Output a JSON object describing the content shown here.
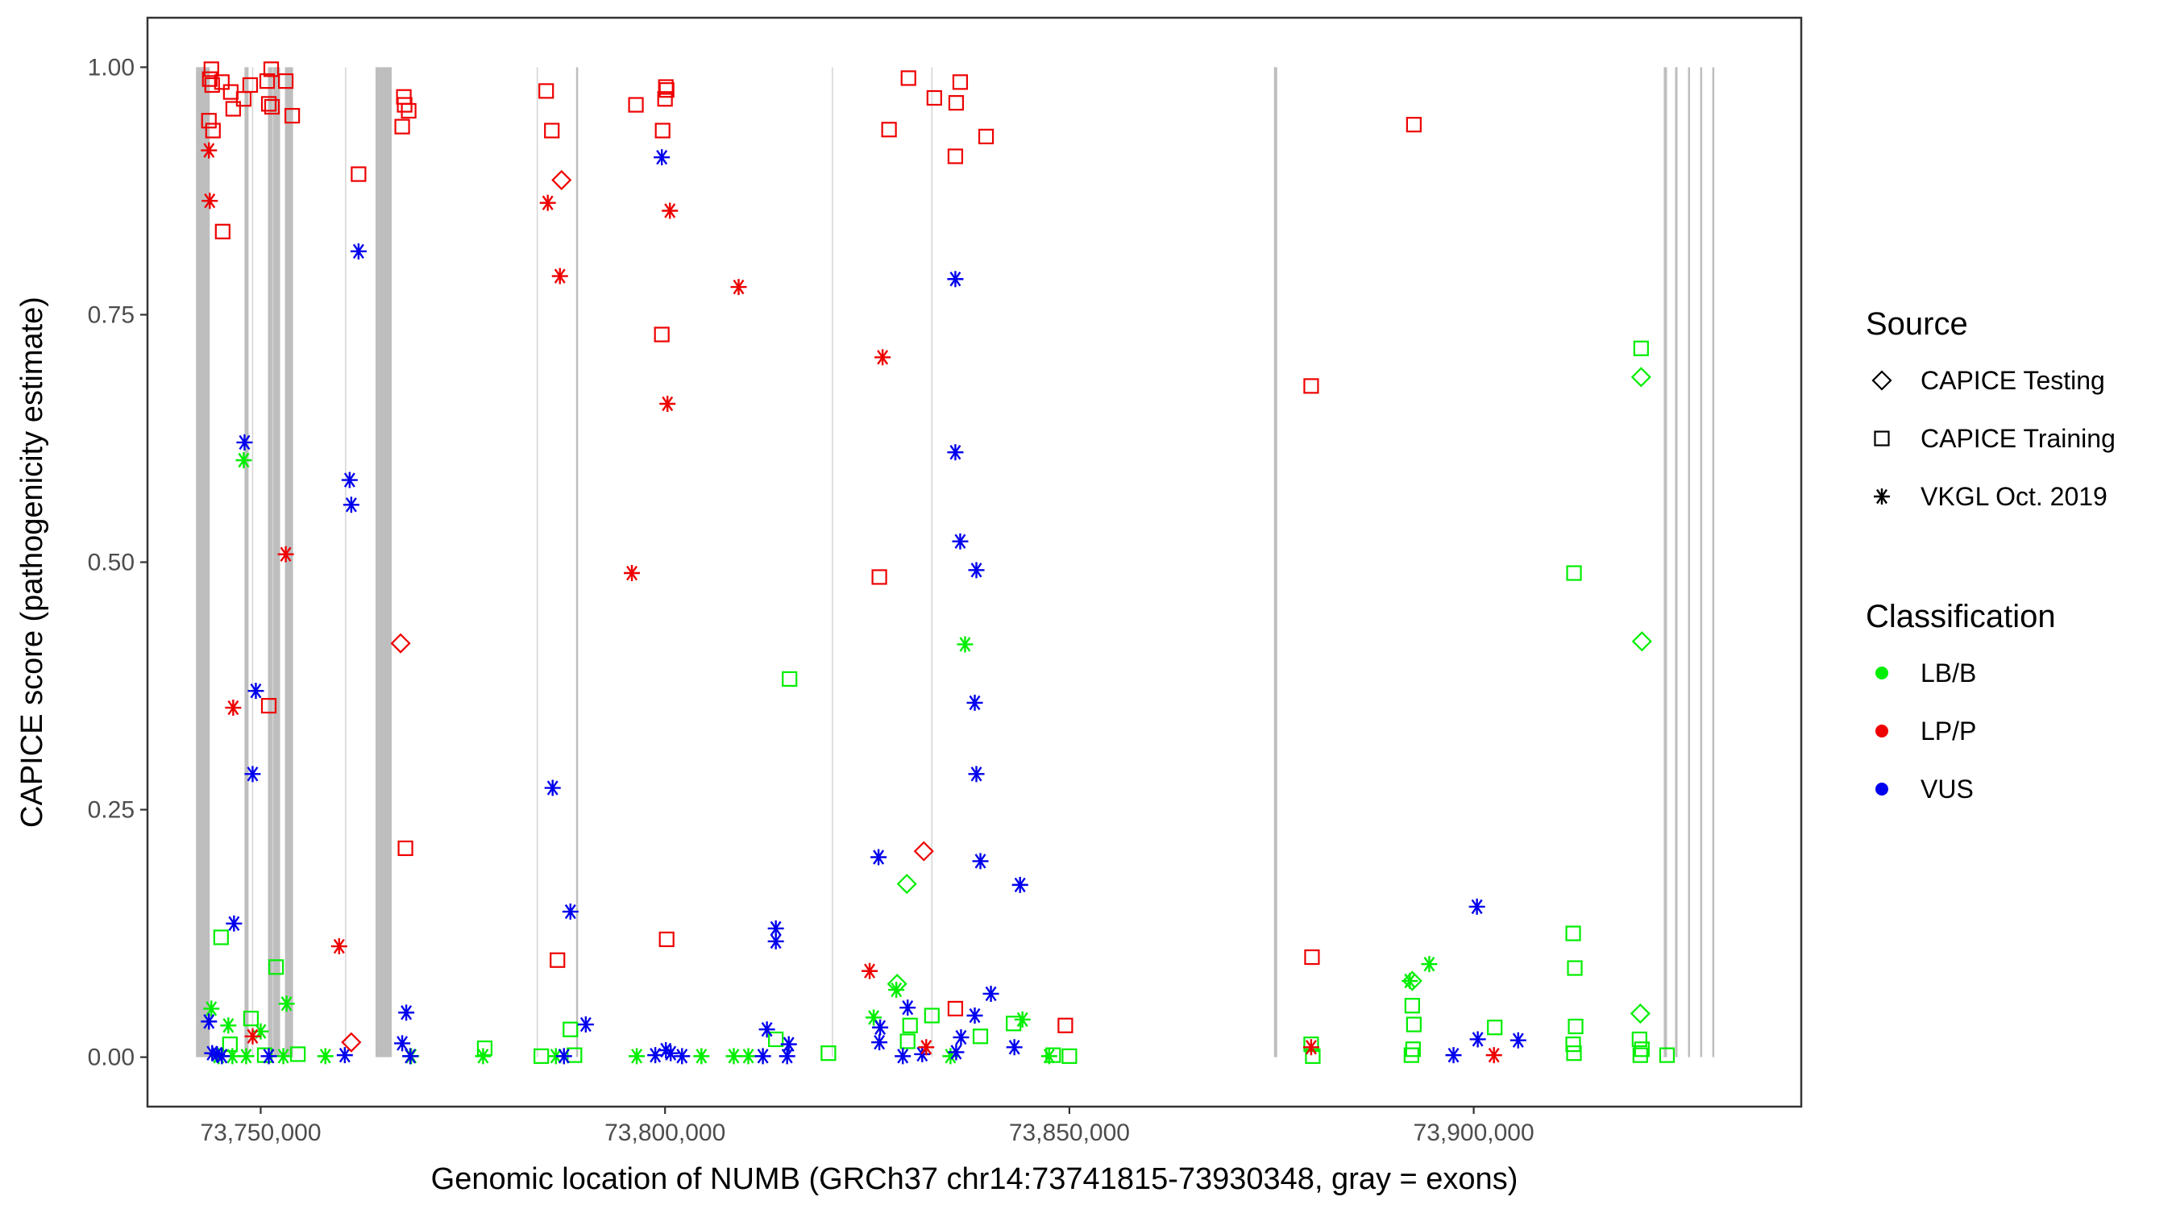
{
  "chart_data": {
    "type": "scatter",
    "xlabel": "Genomic location of NUMB (GRCh37 chr14:73741815-73930348, gray = exons)",
    "ylabel": "CAPICE score (pathogenicity estimate)",
    "xlim": [
      73736000,
      73940500
    ],
    "ylim": [
      -0.05,
      1.05
    ],
    "x_ticks": [
      73750000,
      73800000,
      73850000,
      73900000
    ],
    "x_tick_labels": [
      "73,750,000",
      "73,800,000",
      "73,850,000",
      "73,900,000"
    ],
    "y_ticks": [
      0,
      0.25,
      0.5,
      0.75,
      1.0
    ],
    "y_tick_labels": [
      "0.00",
      "0.25",
      "0.50",
      "0.75",
      "1.00"
    ],
    "grid": false,
    "legend_position": "right",
    "colors": {
      "LB/B": "#00ee00",
      "LP/P": "#ee0000",
      "VUS": "#0000ee",
      "exon": "#bebebe",
      "frame": "#333333"
    },
    "exons": [
      [
        73742000,
        73743700
      ],
      [
        73748000,
        73748500
      ],
      [
        73750900,
        73752400
      ],
      [
        73753000,
        73754000
      ],
      [
        73764200,
        73766200
      ],
      [
        73789000,
        73789200
      ],
      [
        73875300,
        73875700
      ],
      [
        73923500,
        73923900
      ],
      [
        73924900,
        73925200
      ],
      [
        73926500,
        73926700
      ],
      [
        73928000,
        73928200
      ],
      [
        73929500,
        73929700
      ]
    ],
    "exon_lines": [
      73749000,
      73751500,
      73760500,
      73784200,
      73820700,
      73833000
    ],
    "legend": {
      "source_title": "Source",
      "source_items": [
        {
          "label": "CAPICE Testing",
          "shape": "diamond"
        },
        {
          "label": "CAPICE Training",
          "shape": "square"
        },
        {
          "label": "VKGL Oct. 2019",
          "shape": "star"
        }
      ],
      "class_title": "Classification",
      "class_items": [
        {
          "label": "LB/B",
          "color": "#00ee00"
        },
        {
          "label": "LP/P",
          "color": "#ee0000"
        },
        {
          "label": "VUS",
          "color": "#0000ee"
        }
      ]
    },
    "series": [
      {
        "name": "LP/P",
        "color": "#ee0000",
        "points": [
          [
            73743900,
            0.998,
            "square"
          ],
          [
            73743700,
            0.988,
            "square"
          ],
          [
            73744000,
            0.982,
            "square"
          ],
          [
            73745200,
            0.985,
            "square"
          ],
          [
            73743600,
            0.946,
            "square"
          ],
          [
            73744100,
            0.936,
            "square"
          ],
          [
            73746300,
            0.975,
            "square"
          ],
          [
            73746600,
            0.958,
            "square"
          ],
          [
            73747900,
            0.968,
            "square"
          ],
          [
            73748700,
            0.982,
            "square"
          ],
          [
            73751300,
            0.998,
            "square"
          ],
          [
            73750800,
            0.986,
            "square"
          ],
          [
            73751000,
            0.963,
            "square"
          ],
          [
            73751400,
            0.96,
            "square"
          ],
          [
            73753100,
            0.986,
            "square"
          ],
          [
            73753900,
            0.951,
            "square"
          ],
          [
            73745300,
            0.834,
            "square"
          ],
          [
            73762100,
            0.892,
            "square"
          ],
          [
            73767700,
            0.97,
            "square"
          ],
          [
            73767800,
            0.962,
            "square"
          ],
          [
            73768300,
            0.956,
            "square"
          ],
          [
            73767500,
            0.94,
            "square"
          ],
          [
            73785300,
            0.976,
            "square"
          ],
          [
            73786000,
            0.936,
            "square"
          ],
          [
            73796400,
            0.962,
            "square"
          ],
          [
            73800100,
            0.98,
            "square"
          ],
          [
            73800200,
            0.977,
            "square"
          ],
          [
            73800000,
            0.968,
            "square"
          ],
          [
            73799700,
            0.936,
            "square"
          ],
          [
            73799600,
            0.73,
            "square"
          ],
          [
            73830100,
            0.989,
            "square"
          ],
          [
            73836500,
            0.985,
            "square"
          ],
          [
            73833300,
            0.969,
            "square"
          ],
          [
            73836000,
            0.964,
            "square"
          ],
          [
            73827700,
            0.937,
            "square"
          ],
          [
            73839700,
            0.93,
            "square"
          ],
          [
            73835900,
            0.91,
            "square"
          ],
          [
            73751000,
            0.355,
            "square"
          ],
          [
            73767900,
            0.211,
            "square"
          ],
          [
            73786700,
            0.098,
            "square"
          ],
          [
            73800200,
            0.119,
            "square"
          ],
          [
            73826500,
            0.485,
            "square"
          ],
          [
            73835900,
            0.049,
            "square"
          ],
          [
            73849500,
            0.032,
            "square"
          ],
          [
            73892600,
            0.942,
            "square"
          ],
          [
            73879900,
            0.678,
            "square"
          ],
          [
            73880000,
            0.101,
            "square"
          ],
          [
            73787200,
            0.886,
            "diamond"
          ],
          [
            73767300,
            0.418,
            "diamond"
          ],
          [
            73761200,
            0.015,
            "diamond"
          ],
          [
            73832000,
            0.208,
            "diamond"
          ],
          [
            73743600,
            0.916,
            "star"
          ],
          [
            73743700,
            0.865,
            "star"
          ],
          [
            73785500,
            0.863,
            "star"
          ],
          [
            73800600,
            0.855,
            "star"
          ],
          [
            73787000,
            0.789,
            "star"
          ],
          [
            73809100,
            0.778,
            "star"
          ],
          [
            73826900,
            0.707,
            "star"
          ],
          [
            73800300,
            0.66,
            "star"
          ],
          [
            73753100,
            0.508,
            "star"
          ],
          [
            73795900,
            0.489,
            "star"
          ],
          [
            73746600,
            0.353,
            "star"
          ],
          [
            73759700,
            0.112,
            "star"
          ],
          [
            73825300,
            0.087,
            "star"
          ],
          [
            73749000,
            0.021,
            "star"
          ],
          [
            73832300,
            0.01,
            "star"
          ],
          [
            73879900,
            0.01,
            "star"
          ],
          [
            73902500,
            0.002,
            "star"
          ]
        ]
      },
      {
        "name": "VUS",
        "color": "#0000ee",
        "points": [
          [
            73748000,
            0.621,
            "star"
          ],
          [
            73749400,
            0.37,
            "star"
          ],
          [
            73749000,
            0.286,
            "star"
          ],
          [
            73746700,
            0.135,
            "star"
          ],
          [
            73743600,
            0.036,
            "star"
          ],
          [
            73744000,
            0.004,
            "star"
          ],
          [
            73744600,
            0.003,
            "star"
          ],
          [
            73745200,
            0.001,
            "star"
          ],
          [
            73751000,
            0.001,
            "star"
          ],
          [
            73762100,
            0.814,
            "star"
          ],
          [
            73761000,
            0.583,
            "star"
          ],
          [
            73761200,
            0.558,
            "star"
          ],
          [
            73760400,
            0.002,
            "star"
          ],
          [
            73768000,
            0.045,
            "star"
          ],
          [
            73767500,
            0.014,
            "star"
          ],
          [
            73768500,
            0.001,
            "star"
          ],
          [
            73786100,
            0.272,
            "star"
          ],
          [
            73788300,
            0.147,
            "star"
          ],
          [
            73790200,
            0.033,
            "star"
          ],
          [
            73787500,
            0.001,
            "star"
          ],
          [
            73799600,
            0.909,
            "star"
          ],
          [
            73798800,
            0.002,
            "star"
          ],
          [
            73800100,
            0.007,
            "star"
          ],
          [
            73800700,
            0.004,
            "star"
          ],
          [
            73802100,
            0.001,
            "star"
          ],
          [
            73812600,
            0.028,
            "star"
          ],
          [
            73813700,
            0.13,
            "star"
          ],
          [
            73813700,
            0.117,
            "star"
          ],
          [
            73812100,
            0.001,
            "star"
          ],
          [
            73815300,
            0.013,
            "star"
          ],
          [
            73815100,
            0.001,
            "star"
          ],
          [
            73826400,
            0.202,
            "star"
          ],
          [
            73826600,
            0.03,
            "star"
          ],
          [
            73826500,
            0.015,
            "star"
          ],
          [
            73829400,
            0.001,
            "star"
          ],
          [
            73830000,
            0.05,
            "star"
          ],
          [
            73831800,
            0.003,
            "star"
          ],
          [
            73835900,
            0.786,
            "star"
          ],
          [
            73835900,
            0.611,
            "star"
          ],
          [
            73836500,
            0.521,
            "star"
          ],
          [
            73838500,
            0.492,
            "star"
          ],
          [
            73838300,
            0.358,
            "star"
          ],
          [
            73838500,
            0.286,
            "star"
          ],
          [
            73839000,
            0.198,
            "star"
          ],
          [
            73843900,
            0.174,
            "star"
          ],
          [
            73840300,
            0.064,
            "star"
          ],
          [
            73838300,
            0.042,
            "star"
          ],
          [
            73836600,
            0.02,
            "star"
          ],
          [
            73836000,
            0.005,
            "star"
          ],
          [
            73843200,
            0.01,
            "star"
          ],
          [
            73900400,
            0.152,
            "star"
          ],
          [
            73900500,
            0.018,
            "star"
          ],
          [
            73897500,
            0.002,
            "star"
          ],
          [
            73905500,
            0.017,
            "star"
          ]
        ]
      },
      {
        "name": "LB/B",
        "color": "#00ee00",
        "points": [
          [
            73743900,
            0.049,
            "star"
          ],
          [
            73746000,
            0.032,
            "star"
          ],
          [
            73747900,
            0.603,
            "star"
          ],
          [
            73750000,
            0.026,
            "star"
          ],
          [
            73753200,
            0.054,
            "star"
          ],
          [
            73744800,
            0.001,
            "star"
          ],
          [
            73746500,
            0.001,
            "star"
          ],
          [
            73748200,
            0.001,
            "star"
          ],
          [
            73752800,
            0.001,
            "star"
          ],
          [
            73758000,
            0.001,
            "star"
          ],
          [
            73768600,
            0.001,
            "star"
          ],
          [
            73777500,
            0.001,
            "star"
          ],
          [
            73786500,
            0.001,
            "star"
          ],
          [
            73796500,
            0.001,
            "star"
          ],
          [
            73804500,
            0.001,
            "star"
          ],
          [
            73808500,
            0.001,
            "star"
          ],
          [
            73810300,
            0.001,
            "star"
          ],
          [
            73825800,
            0.04,
            "star"
          ],
          [
            73828600,
            0.068,
            "star"
          ],
          [
            73837100,
            0.417,
            "star"
          ],
          [
            73844200,
            0.038,
            "star"
          ],
          [
            73835300,
            0.001,
            "star"
          ],
          [
            73847500,
            0.001,
            "star"
          ],
          [
            73894500,
            0.094,
            "star"
          ],
          [
            73892100,
            0.077,
            "star"
          ],
          [
            73745100,
            0.121,
            "square"
          ],
          [
            73751900,
            0.091,
            "square"
          ],
          [
            73748800,
            0.039,
            "square"
          ],
          [
            73746200,
            0.013,
            "square"
          ],
          [
            73750500,
            0.002,
            "square"
          ],
          [
            73754600,
            0.003,
            "square"
          ],
          [
            73777700,
            0.009,
            "square"
          ],
          [
            73788300,
            0.028,
            "square"
          ],
          [
            73788800,
            0.002,
            "square"
          ],
          [
            73784700,
            0.001,
            "square"
          ],
          [
            73815400,
            0.382,
            "square"
          ],
          [
            73813700,
            0.018,
            "square"
          ],
          [
            73820200,
            0.004,
            "square"
          ],
          [
            73830300,
            0.032,
            "square"
          ],
          [
            73830000,
            0.016,
            "square"
          ],
          [
            73833000,
            0.042,
            "square"
          ],
          [
            73839000,
            0.021,
            "square"
          ],
          [
            73843100,
            0.034,
            "square"
          ],
          [
            73848000,
            0.002,
            "square"
          ],
          [
            73850000,
            0.001,
            "square"
          ],
          [
            73879900,
            0.013,
            "square"
          ],
          [
            73880100,
            0.001,
            "square"
          ],
          [
            73892400,
            0.052,
            "square"
          ],
          [
            73892600,
            0.033,
            "square"
          ],
          [
            73892500,
            0.008,
            "square"
          ],
          [
            73892300,
            0.002,
            "square"
          ],
          [
            73902600,
            0.03,
            "square"
          ],
          [
            73912400,
            0.489,
            "square"
          ],
          [
            73912300,
            0.125,
            "square"
          ],
          [
            73912500,
            0.09,
            "square"
          ],
          [
            73912600,
            0.031,
            "square"
          ],
          [
            73912300,
            0.013,
            "square"
          ],
          [
            73912400,
            0.004,
            "square"
          ],
          [
            73920700,
            0.716,
            "square"
          ],
          [
            73920500,
            0.018,
            "square"
          ],
          [
            73920800,
            0.008,
            "square"
          ],
          [
            73920600,
            0.002,
            "square"
          ],
          [
            73923900,
            0.002,
            "square"
          ],
          [
            73828700,
            0.074,
            "diamond"
          ],
          [
            73829900,
            0.175,
            "diamond"
          ],
          [
            73892400,
            0.077,
            "diamond"
          ],
          [
            73920700,
            0.687,
            "diamond"
          ],
          [
            73920800,
            0.42,
            "diamond"
          ],
          [
            73920600,
            0.044,
            "diamond"
          ]
        ]
      }
    ]
  }
}
